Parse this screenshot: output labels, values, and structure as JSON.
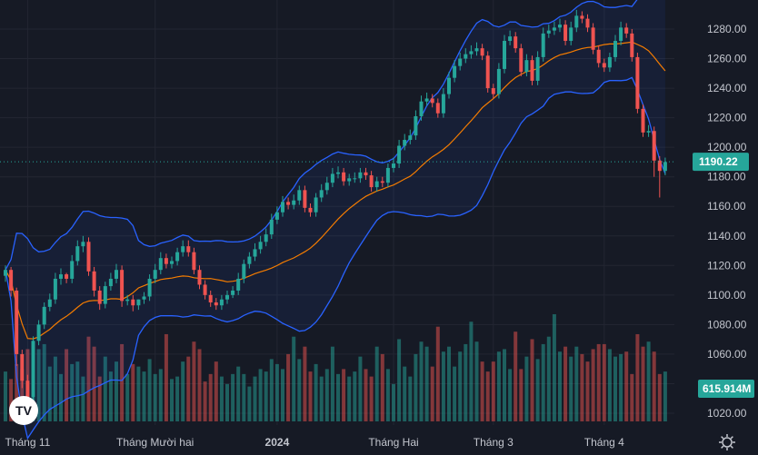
{
  "chart_data": {
    "type": "candlestick",
    "price_axis": {
      "ticks": [
        1020,
        1040,
        1060,
        1080,
        1100,
        1120,
        1140,
        1160,
        1180,
        1200,
        1220,
        1240,
        1260,
        1280
      ],
      "range": [
        1005,
        1295
      ]
    },
    "time_axis": {
      "labels": [
        {
          "label": "Tháng 11",
          "index": 4
        },
        {
          "label": "Tháng Mười hai",
          "index": 27
        },
        {
          "label": "2024",
          "index": 49
        },
        {
          "label": "Tháng Hai",
          "index": 70
        },
        {
          "label": "Tháng 3",
          "index": 88
        },
        {
          "label": "Tháng 4",
          "index": 108
        }
      ],
      "bold_labels": [
        "2024"
      ]
    },
    "last_price": "1190.22",
    "last_volume": "615.914M",
    "colors": {
      "up": "#26a69a",
      "down": "#ef5350",
      "volume_up": "#26a69a",
      "volume_down": "#ef5350",
      "bollinger": "#2962ff",
      "moving_average": "#f57c00",
      "band_fill": "#2962ff",
      "price_badge": "#26a69a",
      "volume_badge": "#26a69a"
    },
    "logo_text": "TV",
    "candles": {
      "close": [
        1117,
        1103,
        1060,
        1042,
        1031,
        1069,
        1080,
        1092,
        1097,
        1111,
        1114,
        1111,
        1123,
        1133,
        1136,
        1116,
        1103,
        1094,
        1106,
        1111,
        1117,
        1096,
        1097,
        1093,
        1097,
        1099,
        1111,
        1117,
        1125,
        1121,
        1123,
        1129,
        1133,
        1129,
        1117,
        1107,
        1100,
        1095,
        1093,
        1097,
        1100,
        1103,
        1111,
        1121,
        1126,
        1131,
        1136,
        1141,
        1151,
        1156,
        1163,
        1161,
        1164,
        1171,
        1159,
        1156,
        1166,
        1171,
        1176,
        1182,
        1183,
        1177,
        1179,
        1179,
        1183,
        1181,
        1173,
        1177,
        1176,
        1186,
        1189,
        1201,
        1205,
        1208,
        1221,
        1231,
        1233,
        1230,
        1223,
        1236,
        1247,
        1255,
        1260,
        1263,
        1265,
        1267,
        1262,
        1240,
        1236,
        1253,
        1272,
        1275,
        1267,
        1251,
        1259,
        1245,
        1261,
        1277,
        1279,
        1281,
        1283,
        1272,
        1281,
        1289,
        1287,
        1281,
        1266,
        1257,
        1254,
        1261,
        1272,
        1281,
        1277,
        1261,
        1226,
        1210,
        1211,
        1191,
        1184,
        1190
      ],
      "open": [
        1113,
        1117,
        1103,
        1060,
        1042,
        1031,
        1069,
        1080,
        1092,
        1097,
        1111,
        1114,
        1111,
        1123,
        1133,
        1136,
        1116,
        1103,
        1094,
        1106,
        1111,
        1117,
        1096,
        1097,
        1093,
        1097,
        1099,
        1111,
        1117,
        1125,
        1121,
        1123,
        1129,
        1133,
        1129,
        1117,
        1107,
        1100,
        1095,
        1093,
        1097,
        1100,
        1103,
        1111,
        1121,
        1126,
        1131,
        1136,
        1141,
        1151,
        1156,
        1163,
        1161,
        1164,
        1171,
        1159,
        1156,
        1166,
        1171,
        1176,
        1182,
        1183,
        1177,
        1179,
        1179,
        1183,
        1181,
        1173,
        1177,
        1176,
        1186,
        1189,
        1201,
        1205,
        1208,
        1221,
        1231,
        1233,
        1230,
        1223,
        1236,
        1247,
        1255,
        1260,
        1263,
        1265,
        1267,
        1262,
        1240,
        1236,
        1253,
        1272,
        1275,
        1267,
        1251,
        1259,
        1245,
        1261,
        1277,
        1279,
        1281,
        1283,
        1272,
        1281,
        1289,
        1287,
        1281,
        1266,
        1257,
        1254,
        1261,
        1272,
        1281,
        1277,
        1261,
        1226,
        1210,
        1211,
        1191,
        1184
      ],
      "high": [
        1120,
        1119,
        1105,
        1063,
        1046,
        1072,
        1083,
        1095,
        1101,
        1115,
        1118,
        1115,
        1127,
        1137,
        1140,
        1139,
        1119,
        1106,
        1109,
        1115,
        1121,
        1120,
        1100,
        1100,
        1097,
        1102,
        1114,
        1121,
        1129,
        1128,
        1126,
        1132,
        1137,
        1137,
        1132,
        1120,
        1110,
        1103,
        1098,
        1100,
        1103,
        1106,
        1115,
        1124,
        1129,
        1135,
        1140,
        1145,
        1155,
        1160,
        1167,
        1166,
        1168,
        1174,
        1174,
        1162,
        1169,
        1175,
        1180,
        1186,
        1187,
        1186,
        1182,
        1183,
        1186,
        1186,
        1184,
        1180,
        1180,
        1189,
        1193,
        1205,
        1209,
        1212,
        1225,
        1235,
        1237,
        1236,
        1233,
        1240,
        1251,
        1259,
        1264,
        1267,
        1269,
        1271,
        1270,
        1265,
        1243,
        1257,
        1276,
        1279,
        1278,
        1270,
        1263,
        1262,
        1265,
        1281,
        1283,
        1285,
        1287,
        1286,
        1285,
        1293,
        1292,
        1290,
        1284,
        1269,
        1260,
        1264,
        1276,
        1285,
        1284,
        1280,
        1264,
        1229,
        1215,
        1214,
        1194,
        1193
      ],
      "low": [
        1109,
        1099,
        1052,
        1037,
        1025,
        1028,
        1066,
        1077,
        1089,
        1094,
        1107,
        1108,
        1108,
        1120,
        1129,
        1113,
        1099,
        1090,
        1091,
        1103,
        1108,
        1092,
        1093,
        1089,
        1090,
        1094,
        1096,
        1108,
        1114,
        1118,
        1118,
        1120,
        1126,
        1126,
        1114,
        1104,
        1097,
        1092,
        1090,
        1090,
        1094,
        1098,
        1100,
        1108,
        1118,
        1123,
        1128,
        1133,
        1138,
        1148,
        1153,
        1158,
        1158,
        1161,
        1156,
        1153,
        1153,
        1163,
        1168,
        1173,
        1179,
        1174,
        1174,
        1176,
        1176,
        1178,
        1170,
        1170,
        1173,
        1173,
        1183,
        1186,
        1198,
        1202,
        1205,
        1218,
        1228,
        1227,
        1220,
        1220,
        1233,
        1244,
        1252,
        1257,
        1260,
        1262,
        1259,
        1237,
        1233,
        1233,
        1250,
        1269,
        1264,
        1248,
        1248,
        1242,
        1242,
        1258,
        1274,
        1276,
        1278,
        1269,
        1269,
        1278,
        1284,
        1278,
        1263,
        1254,
        1251,
        1251,
        1258,
        1269,
        1274,
        1258,
        1223,
        1207,
        1207,
        1180,
        1166,
        1181
      ]
    },
    "volume": [
      40,
      34,
      46,
      42,
      58,
      40,
      58,
      62,
      44,
      52,
      38,
      58,
      46,
      48,
      36,
      68,
      60,
      36,
      52,
      40,
      48,
      62,
      38,
      46,
      44,
      40,
      50,
      38,
      42,
      70,
      34,
      36,
      48,
      52,
      64,
      58,
      32,
      38,
      48,
      36,
      30,
      38,
      44,
      38,
      28,
      36,
      42,
      40,
      50,
      46,
      42,
      54,
      68,
      50,
      60,
      40,
      46,
      36,
      42,
      60,
      38,
      42,
      36,
      40,
      52,
      42,
      36,
      60,
      54,
      42,
      30,
      66,
      44,
      36,
      54,
      64,
      60,
      44,
      76,
      56,
      60,
      44,
      56,
      62,
      80,
      64,
      48,
      40,
      48,
      56,
      58,
      42,
      72,
      42,
      52,
      66,
      50,
      62,
      68,
      86,
      56,
      60,
      52,
      60,
      54,
      48,
      58,
      62,
      62,
      58,
      52,
      54,
      56,
      38,
      70,
      60,
      64,
      56,
      38,
      40
    ]
  }
}
